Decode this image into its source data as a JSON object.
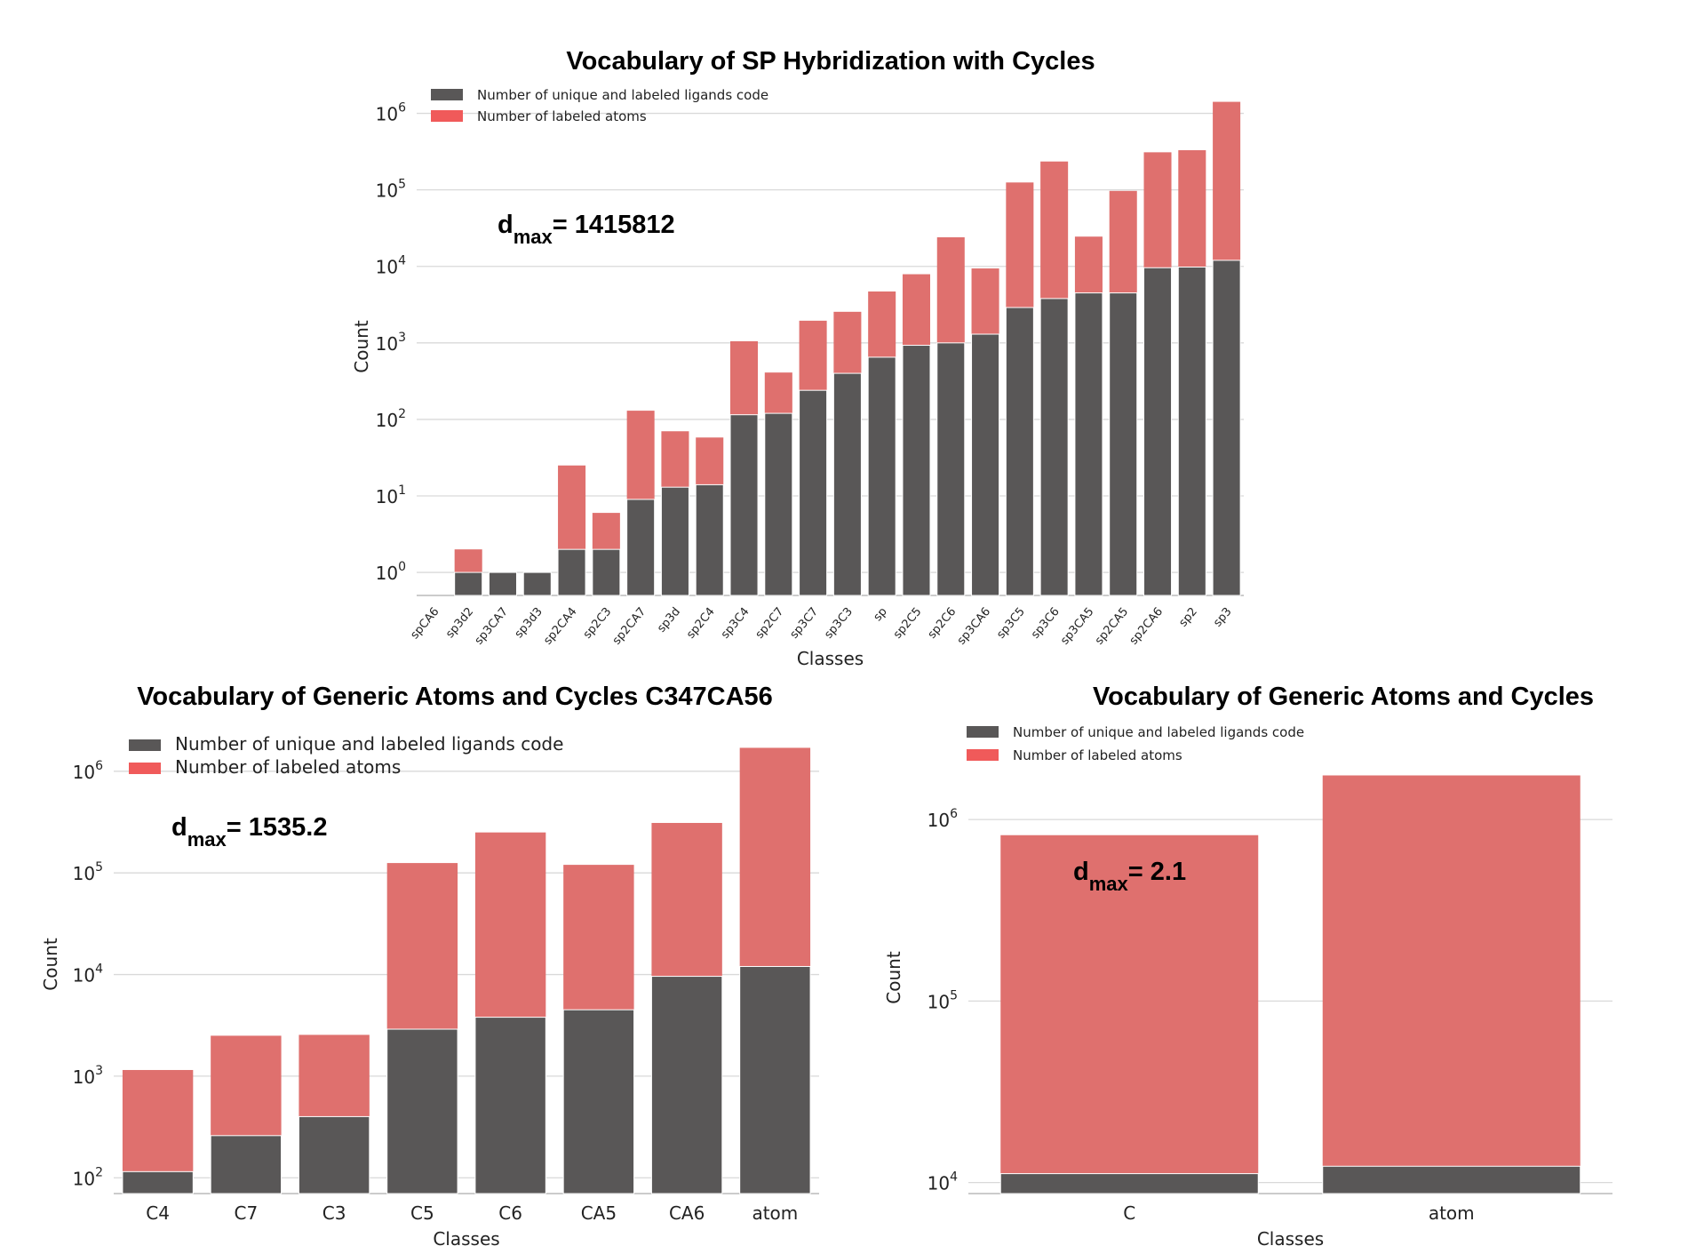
{
  "colors": {
    "unique": "#595757",
    "atoms": "#df706e",
    "legend_atoms": "#f05a5a",
    "grid": "#d9d9d9"
  },
  "chart_data": [
    {
      "type": "bar",
      "stacked": true,
      "title": "Vocabulary of SP Hybridization with Cycles",
      "xlabel": "Classes",
      "ylabel": "Count",
      "yscale": "log",
      "ylim": [
        0.5,
        1600000
      ],
      "grid": true,
      "legend": "top-left",
      "annotation": {
        "d": "d",
        "sub": "max",
        "text": "= 1415812"
      },
      "yticks": [
        {
          "base": "10",
          "exp": "0",
          "v": 1
        },
        {
          "base": "10",
          "exp": "1",
          "v": 10
        },
        {
          "base": "10",
          "exp": "2",
          "v": 100
        },
        {
          "base": "10",
          "exp": "3",
          "v": 1000
        },
        {
          "base": "10",
          "exp": "4",
          "v": 10000
        },
        {
          "base": "10",
          "exp": "5",
          "v": 100000
        },
        {
          "base": "10",
          "exp": "6",
          "v": 1000000
        }
      ],
      "categories": [
        "spCA6",
        "sp3d2",
        "sp3CA7",
        "sp3d3",
        "sp2CA4",
        "sp2C3",
        "sp2CA7",
        "sp3d",
        "sp2C4",
        "sp3C4",
        "sp2C7",
        "sp3C7",
        "sp3C3",
        "sp",
        "sp2C5",
        "sp2C6",
        "sp3CA6",
        "sp3C5",
        "sp3C6",
        "sp3CA5",
        "sp2CA5",
        "sp2CA6",
        "sp2",
        "sp3"
      ],
      "series": [
        {
          "name": "Number of unique and labeled ligands code",
          "values": [
            0,
            1,
            1,
            1,
            2,
            2,
            9,
            13,
            14,
            115,
            120,
            240,
            400,
            650,
            930,
            1000,
            1300,
            2900,
            3800,
            4500,
            4500,
            9600,
            9800,
            12000
          ]
        },
        {
          "name": "Number of labeled atoms",
          "values": [
            0,
            2,
            1,
            1,
            25,
            6,
            130,
            70,
            58,
            1050,
            410,
            1950,
            2550,
            4700,
            7900,
            24000,
            9400,
            125000,
            235000,
            24500,
            97000,
            310000,
            330000,
            1415812
          ]
        }
      ]
    },
    {
      "type": "bar",
      "stacked": true,
      "title": "Vocabulary of Generic Atoms and Cycles C347CA56",
      "xlabel": "Classes",
      "ylabel": "Count",
      "yscale": "log",
      "ylim": [
        70,
        1750000
      ],
      "grid": true,
      "legend": "top-left",
      "annotation": {
        "d": "d",
        "sub": "max",
        "text": "= 1535.2"
      },
      "yticks": [
        {
          "base": "10",
          "exp": "2",
          "v": 100
        },
        {
          "base": "10",
          "exp": "3",
          "v": 1000
        },
        {
          "base": "10",
          "exp": "4",
          "v": 10000
        },
        {
          "base": "10",
          "exp": "5",
          "v": 100000
        },
        {
          "base": "10",
          "exp": "6",
          "v": 1000000
        }
      ],
      "categories": [
        "C4",
        "C7",
        "C3",
        "C5",
        "C6",
        "CA5",
        "CA6",
        "atom"
      ],
      "series": [
        {
          "name": "Number of unique and labeled ligands code",
          "values": [
            115,
            260,
            400,
            2900,
            3800,
            4500,
            9600,
            12000
          ]
        },
        {
          "name": "Number of labeled atoms",
          "values": [
            1150,
            2500,
            2550,
            125000,
            250000,
            120000,
            310000,
            1700000
          ]
        }
      ]
    },
    {
      "type": "bar",
      "stacked": true,
      "title": "Vocabulary of Generic Atoms and Cycles",
      "xlabel": "Classes",
      "ylabel": "Count",
      "yscale": "log",
      "ylim": [
        8700,
        1800000
      ],
      "grid": true,
      "legend": "top-left",
      "annotation": {
        "d": "d",
        "sub": "max",
        "text": "= 2.1"
      },
      "yticks": [
        {
          "base": "10",
          "exp": "4",
          "v": 10000
        },
        {
          "base": "10",
          "exp": "5",
          "v": 100000
        },
        {
          "base": "10",
          "exp": "6",
          "v": 1000000
        }
      ],
      "categories": [
        "C",
        "atom"
      ],
      "series": [
        {
          "name": "Number of unique and labeled ligands code",
          "values": [
            11200,
            12300
          ]
        },
        {
          "name": "Number of labeled atoms",
          "values": [
            820000,
            1750000
          ]
        }
      ]
    }
  ]
}
